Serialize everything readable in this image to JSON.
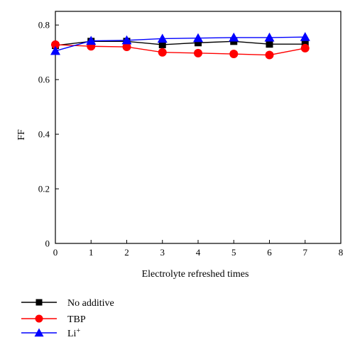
{
  "chart_data": {
    "type": "line",
    "title": "",
    "xlabel": "Electrolyte refreshed times",
    "ylabel": "FF",
    "xlim": [
      0,
      8
    ],
    "ylim": [
      0,
      0.85
    ],
    "x_ticks": [
      0,
      1,
      2,
      3,
      4,
      5,
      6,
      7,
      8
    ],
    "y_ticks": [
      0,
      0.2,
      0.4,
      0.6,
      0.8
    ],
    "x_tick_labels": [
      "0",
      "1",
      "2",
      "3",
      "4",
      "5",
      "6",
      "7",
      "8"
    ],
    "y_tick_labels": [
      "0",
      "0.2",
      "0.4",
      "0.6",
      "0.8"
    ],
    "grid": false,
    "legend_position": "bottom-left",
    "x": [
      0,
      1,
      2,
      3,
      4,
      5,
      6,
      7
    ],
    "series": [
      {
        "name": "No additive",
        "marker": "square",
        "color": "#000000",
        "values": [
          0.725,
          0.74,
          0.74,
          0.728,
          0.735,
          0.74,
          0.73,
          0.73
        ]
      },
      {
        "name": "TBP",
        "marker": "circle",
        "color": "#ff0000",
        "values": [
          0.728,
          0.722,
          0.72,
          0.7,
          0.697,
          0.694,
          0.69,
          0.715
        ]
      },
      {
        "name": "Li",
        "name_sup": "+",
        "marker": "triangle",
        "color": "#0000ff",
        "values": [
          0.705,
          0.742,
          0.744,
          0.75,
          0.752,
          0.754,
          0.754,
          0.756
        ]
      }
    ]
  }
}
